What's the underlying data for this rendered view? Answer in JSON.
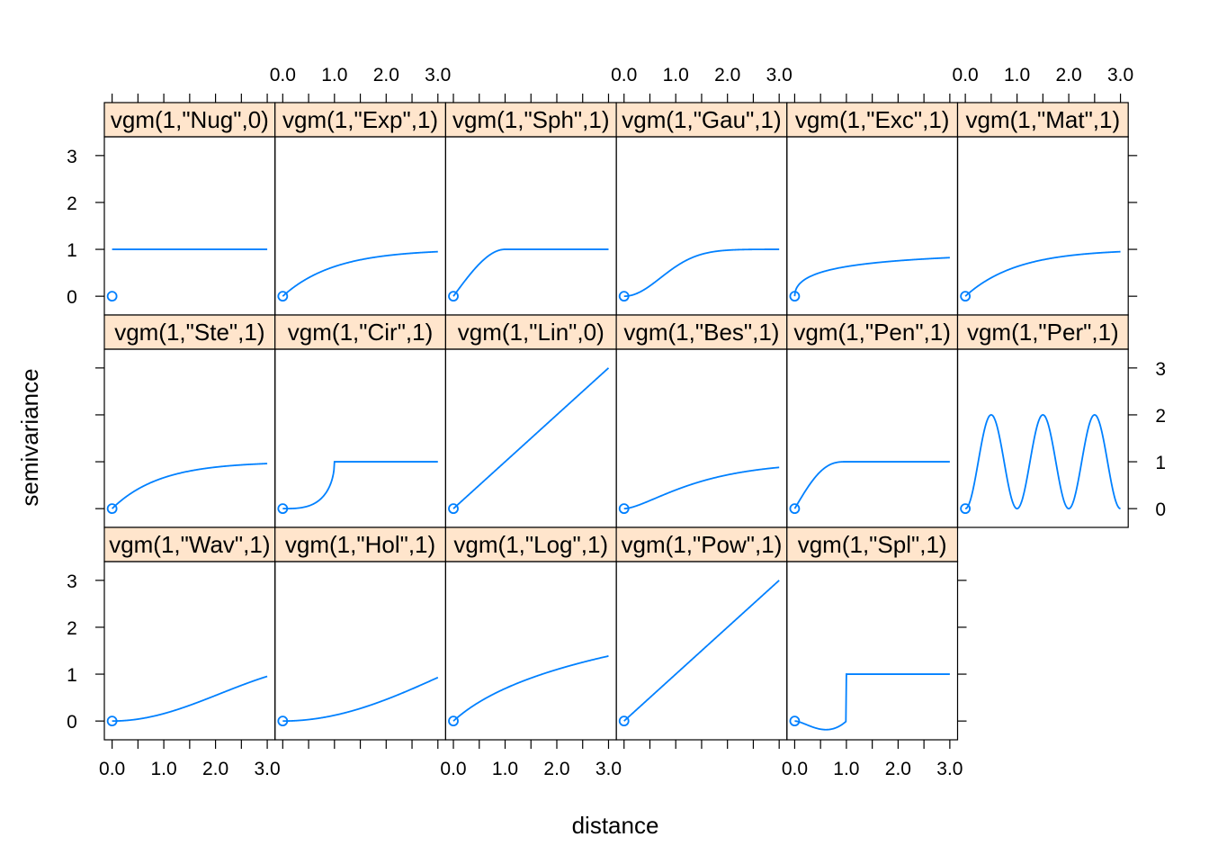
{
  "chart_data": {
    "type": "line",
    "layout": {
      "columns": 6,
      "rows": 3
    },
    "xlabel": "distance",
    "ylabel": "semivariance",
    "xlim": [
      -0.15,
      3.15
    ],
    "ylim": [
      -0.4,
      3.4
    ],
    "xticks": [
      0,
      1,
      2,
      3
    ],
    "xtick_labels": [
      "0.0",
      "1.0",
      "2.0",
      "3.0"
    ],
    "yticks": [
      0,
      1,
      2,
      3
    ],
    "ytick_labels": [
      "0",
      "1",
      "2",
      "3"
    ],
    "line_color": "#0080FF",
    "strip_color": "#FFE5CC",
    "panels": [
      {
        "strip": "vgm(1,\"Nug\",0)",
        "model": "Nug",
        "point": [
          0,
          0
        ]
      },
      {
        "strip": "vgm(1,\"Exp\",1)",
        "model": "Exp",
        "point": [
          0,
          0
        ]
      },
      {
        "strip": "vgm(1,\"Sph\",1)",
        "model": "Sph",
        "point": [
          0,
          0
        ]
      },
      {
        "strip": "vgm(1,\"Gau\",1)",
        "model": "Gau",
        "point": [
          0,
          0
        ]
      },
      {
        "strip": "vgm(1,\"Exc\",1)",
        "model": "Exc",
        "point": [
          0,
          0
        ]
      },
      {
        "strip": "vgm(1,\"Mat\",1)",
        "model": "Mat",
        "point": [
          0,
          0
        ]
      },
      {
        "strip": "vgm(1,\"Ste\",1)",
        "model": "Ste",
        "point": [
          0,
          0
        ]
      },
      {
        "strip": "vgm(1,\"Cir\",1)",
        "model": "Cir",
        "point": [
          0,
          0
        ]
      },
      {
        "strip": "vgm(1,\"Lin\",0)",
        "model": "Lin",
        "point": [
          0,
          0
        ]
      },
      {
        "strip": "vgm(1,\"Bes\",1)",
        "model": "Bes",
        "point": [
          0,
          0
        ]
      },
      {
        "strip": "vgm(1,\"Pen\",1)",
        "model": "Pen",
        "point": [
          0,
          0
        ]
      },
      {
        "strip": "vgm(1,\"Per\",1)",
        "model": "Per",
        "point": [
          0,
          0
        ]
      },
      {
        "strip": "vgm(1,\"Wav\",1)",
        "model": "Wav",
        "point": [
          0,
          0
        ]
      },
      {
        "strip": "vgm(1,\"Hol\",1)",
        "model": "Hol",
        "point": [
          0,
          0
        ]
      },
      {
        "strip": "vgm(1,\"Log\",1)",
        "model": "Log",
        "point": [
          0,
          0
        ]
      },
      {
        "strip": "vgm(1,\"Pow\",1)",
        "model": "Pow",
        "point": [
          0,
          0
        ]
      },
      {
        "strip": "vgm(1,\"Spl\",1)",
        "model": "Spl",
        "point": [
          0,
          0
        ]
      }
    ]
  }
}
